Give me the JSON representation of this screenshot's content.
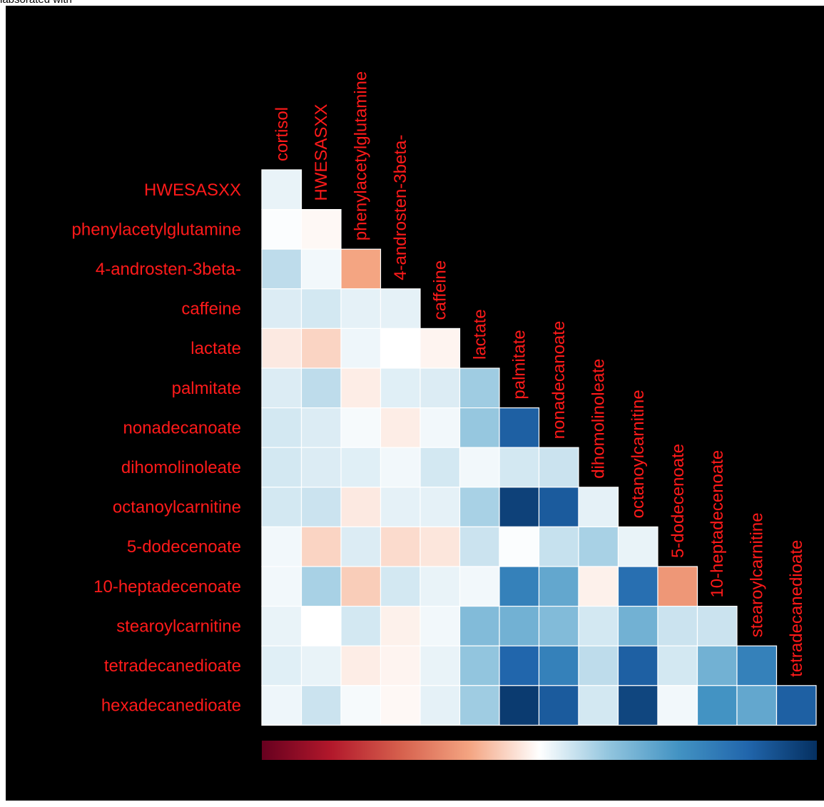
{
  "page": {
    "top_fragment": "labsorated with"
  },
  "chart_data": {
    "type": "heatmap",
    "layout": "lower-triangle correlation matrix",
    "columns": [
      "cortisol",
      "HWESASXX",
      "phenylacetylglutamine",
      "4-androsten-3beta-",
      "caffeine",
      "lactate",
      "palmitate",
      "nonadecanoate",
      "dihomolinoleate",
      "octanoylcarnitine",
      "5-dodecenoate",
      "10-heptadecenoate",
      "stearoylcarnitine",
      "tetradecanedioate"
    ],
    "rows": [
      "HWESASXX",
      "phenylacetylglutamine",
      "4-androsten-3beta-",
      "caffeine",
      "lactate",
      "palmitate",
      "nonadecanoate",
      "dihomolinoleate",
      "octanoylcarnitine",
      "5-dodecenoate",
      "10-heptadecenoate",
      "stearoylcarnitine",
      "tetradecanedioate",
      "hexadecanedioate"
    ],
    "values": [
      [
        0.05
      ],
      [
        0.01,
        -0.02
      ],
      [
        0.15,
        0.03,
        -0.25
      ],
      [
        0.08,
        0.1,
        0.06,
        0.06
      ],
      [
        -0.06,
        -0.12,
        0.04,
        0.0,
        -0.03
      ],
      [
        0.08,
        0.15,
        -0.05,
        0.07,
        0.08,
        0.22
      ],
      [
        0.1,
        0.08,
        0.02,
        -0.05,
        0.03,
        0.24,
        0.78
      ],
      [
        0.1,
        0.08,
        0.07,
        0.03,
        0.1,
        0.03,
        0.1,
        0.12
      ],
      [
        0.1,
        0.12,
        -0.06,
        0.06,
        0.06,
        0.2,
        0.92,
        0.8,
        0.06
      ],
      [
        0.03,
        -0.12,
        0.08,
        -0.1,
        -0.07,
        0.12,
        0.01,
        0.13,
        0.2,
        0.05
      ],
      [
        0.03,
        0.2,
        -0.14,
        0.1,
        0.05,
        0.03,
        0.6,
        0.4,
        -0.04,
        0.7,
        -0.3
      ],
      [
        0.05,
        0.0,
        0.1,
        -0.04,
        0.03,
        0.3,
        0.35,
        0.3,
        0.1,
        0.35,
        0.12,
        0.12
      ],
      [
        0.07,
        0.05,
        -0.05,
        -0.03,
        0.05,
        0.25,
        0.75,
        0.6,
        0.15,
        0.78,
        0.1,
        0.35,
        0.6
      ],
      [
        0.04,
        0.12,
        0.02,
        -0.02,
        0.06,
        0.22,
        0.95,
        0.8,
        0.1,
        0.9,
        0.03,
        0.5,
        0.4,
        0.78
      ]
    ],
    "color_scale": {
      "min": -1,
      "max": 1,
      "low_color": "#67001f",
      "mid_color": "#ffffff",
      "high_color": "#053061"
    },
    "colorbar": "horizontal, bottom",
    "label_color": "#ff0000",
    "background": "#000000"
  }
}
